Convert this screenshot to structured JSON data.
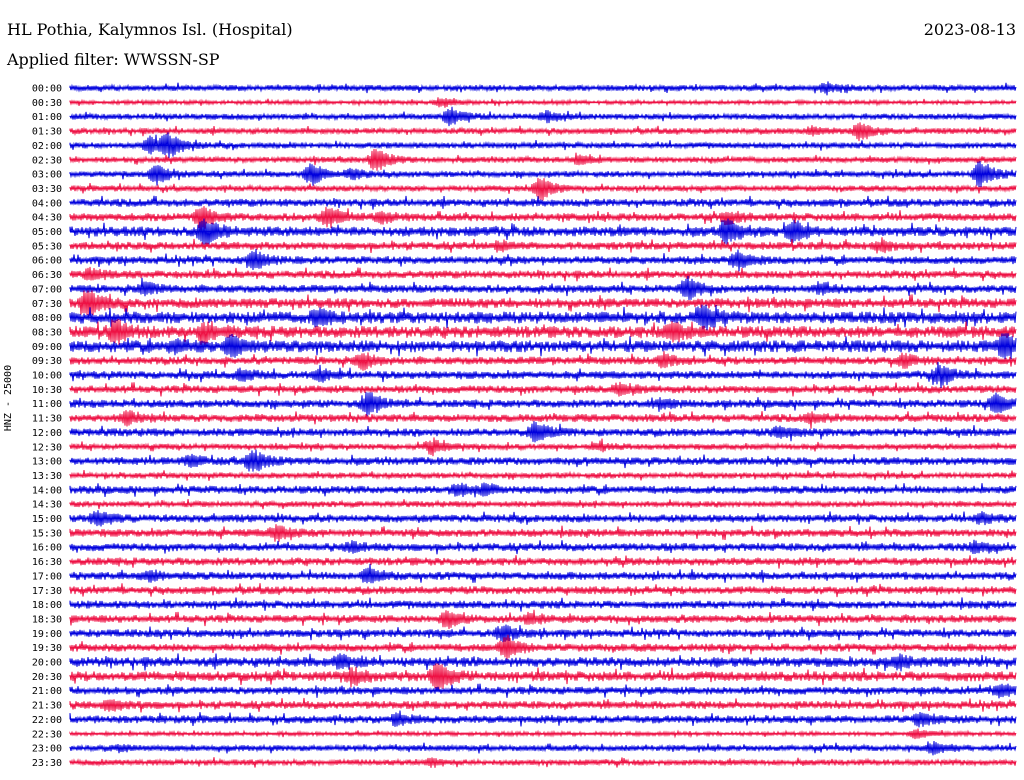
{
  "header": {
    "station": "HL Pothia, Kalymnos Isl. (Hospital)",
    "date": "2023-08-13",
    "filter": "Applied filter: WWSSN-SP"
  },
  "chart_data": {
    "type": "line",
    "title": "HL Pothia, Kalymnos Isl. (Hospital)",
    "subtitle": "Applied filter: WWSSN-SP",
    "ylabel": "HNZ - 25000",
    "xlabel": "",
    "grid": false,
    "colors": [
      "#0000dd",
      "#ee1144"
    ],
    "rows": [
      {
        "label": "00:00",
        "amp": 3,
        "bursts": [
          [
            826,
            5
          ]
        ]
      },
      {
        "label": "00:30",
        "amp": 2,
        "bursts": [
          [
            440,
            4
          ]
        ]
      },
      {
        "label": "01:00",
        "amp": 3,
        "bursts": [
          [
            450,
            9
          ],
          [
            547,
            5
          ]
        ]
      },
      {
        "label": "01:30",
        "amp": 3,
        "bursts": [
          [
            860,
            10
          ],
          [
            812,
            4
          ]
        ]
      },
      {
        "label": "02:00",
        "amp": 3,
        "bursts": [
          [
            150,
            9
          ],
          [
            168,
            12
          ]
        ]
      },
      {
        "label": "02:30",
        "amp": 3,
        "bursts": [
          [
            376,
            12
          ],
          [
            580,
            4
          ]
        ]
      },
      {
        "label": "03:00",
        "amp": 3,
        "bursts": [
          [
            156,
            11
          ],
          [
            311,
            12
          ],
          [
            980,
            15
          ],
          [
            352,
            5
          ]
        ]
      },
      {
        "label": "03:30",
        "amp": 3,
        "bursts": [
          [
            540,
            12
          ]
        ]
      },
      {
        "label": "04:00",
        "amp": 4,
        "bursts": []
      },
      {
        "label": "04:30",
        "amp": 4,
        "bursts": [
          [
            201,
            11
          ],
          [
            327,
            10
          ],
          [
            381,
            5
          ],
          [
            728,
            6
          ]
        ]
      },
      {
        "label": "05:00",
        "amp": 5,
        "bursts": [
          [
            205,
            14
          ],
          [
            726,
            13
          ],
          [
            793,
            10
          ]
        ]
      },
      {
        "label": "05:30",
        "amp": 4,
        "bursts": [
          [
            500,
            4
          ],
          [
            882,
            5
          ]
        ]
      },
      {
        "label": "06:00",
        "amp": 4,
        "bursts": [
          [
            253,
            10
          ],
          [
            737,
            9
          ]
        ]
      },
      {
        "label": "06:30",
        "amp": 4,
        "bursts": [
          [
            90,
            5
          ]
        ]
      },
      {
        "label": "07:00",
        "amp": 4,
        "bursts": [
          [
            145,
            6
          ],
          [
            687,
            11
          ],
          [
            820,
            5
          ]
        ]
      },
      {
        "label": "07:30",
        "amp": 5,
        "bursts": [
          [
            88,
            14
          ]
        ]
      },
      {
        "label": "08:00",
        "amp": 6,
        "bursts": [
          [
            703,
            12
          ],
          [
            318,
            8
          ]
        ]
      },
      {
        "label": "08:30",
        "amp": 6,
        "bursts": [
          [
            115,
            11
          ],
          [
            205,
            9
          ],
          [
            672,
            9
          ]
        ]
      },
      {
        "label": "09:00",
        "amp": 6,
        "bursts": [
          [
            232,
            10
          ],
          [
            1005,
            14
          ],
          [
            175,
            6
          ]
        ]
      },
      {
        "label": "09:30",
        "amp": 4,
        "bursts": [
          [
            362,
            8
          ],
          [
            664,
            6
          ],
          [
            905,
            6
          ]
        ]
      },
      {
        "label": "10:00",
        "amp": 4,
        "bursts": [
          [
            940,
            11
          ],
          [
            242,
            6
          ],
          [
            320,
            6
          ]
        ]
      },
      {
        "label": "10:30",
        "amp": 4,
        "bursts": [
          [
            620,
            6
          ]
        ]
      },
      {
        "label": "11:00",
        "amp": 4,
        "bursts": [
          [
            368,
            12
          ],
          [
            996,
            10
          ],
          [
            660,
            5
          ]
        ]
      },
      {
        "label": "11:30",
        "amp": 4,
        "bursts": [
          [
            128,
            7
          ],
          [
            810,
            5
          ]
        ]
      },
      {
        "label": "12:00",
        "amp": 4,
        "bursts": [
          [
            536,
            12
          ],
          [
            779,
            5
          ]
        ]
      },
      {
        "label": "12:30",
        "amp": 3,
        "bursts": [
          [
            433,
            7
          ],
          [
            600,
            4
          ]
        ]
      },
      {
        "label": "13:00",
        "amp": 4,
        "bursts": [
          [
            252,
            12
          ],
          [
            191,
            5
          ]
        ]
      },
      {
        "label": "13:30",
        "amp": 3,
        "bursts": []
      },
      {
        "label": "14:00",
        "amp": 4,
        "bursts": [
          [
            457,
            6
          ],
          [
            486,
            5
          ]
        ]
      },
      {
        "label": "14:30",
        "amp": 3,
        "bursts": []
      },
      {
        "label": "15:00",
        "amp": 4,
        "bursts": [
          [
            97,
            7
          ],
          [
            981,
            5
          ]
        ]
      },
      {
        "label": "15:30",
        "amp": 4,
        "bursts": [
          [
            276,
            7
          ]
        ]
      },
      {
        "label": "16:00",
        "amp": 4,
        "bursts": [
          [
            352,
            5
          ],
          [
            975,
            5
          ]
        ]
      },
      {
        "label": "16:30",
        "amp": 4,
        "bursts": []
      },
      {
        "label": "17:00",
        "amp": 4,
        "bursts": [
          [
            368,
            8
          ],
          [
            150,
            5
          ]
        ]
      },
      {
        "label": "17:30",
        "amp": 4,
        "bursts": []
      },
      {
        "label": "18:00",
        "amp": 4,
        "bursts": []
      },
      {
        "label": "18:30",
        "amp": 4,
        "bursts": [
          [
            447,
            9
          ],
          [
            530,
            5
          ]
        ]
      },
      {
        "label": "19:00",
        "amp": 4,
        "bursts": [
          [
            503,
            8
          ]
        ]
      },
      {
        "label": "19:30",
        "amp": 4,
        "bursts": [
          [
            506,
            12
          ]
        ]
      },
      {
        "label": "20:00",
        "amp": 5,
        "bursts": [
          [
            340,
            6
          ],
          [
            900,
            5
          ]
        ]
      },
      {
        "label": "20:30",
        "amp": 5,
        "bursts": [
          [
            437,
            16
          ],
          [
            353,
            8
          ]
        ]
      },
      {
        "label": "21:00",
        "amp": 4,
        "bursts": [
          [
            1000,
            6
          ]
        ]
      },
      {
        "label": "21:30",
        "amp": 4,
        "bursts": [
          [
            110,
            6
          ]
        ]
      },
      {
        "label": "22:00",
        "amp": 4,
        "bursts": [
          [
            398,
            6
          ],
          [
            920,
            6
          ]
        ]
      },
      {
        "label": "22:30",
        "amp": 2,
        "bursts": [
          [
            917,
            5
          ]
        ]
      },
      {
        "label": "23:00",
        "amp": 3,
        "bursts": [
          [
            934,
            6
          ],
          [
            120,
            3
          ]
        ]
      },
      {
        "label": "23:30",
        "amp": 3,
        "bursts": [
          [
            430,
            4
          ]
        ]
      }
    ]
  }
}
